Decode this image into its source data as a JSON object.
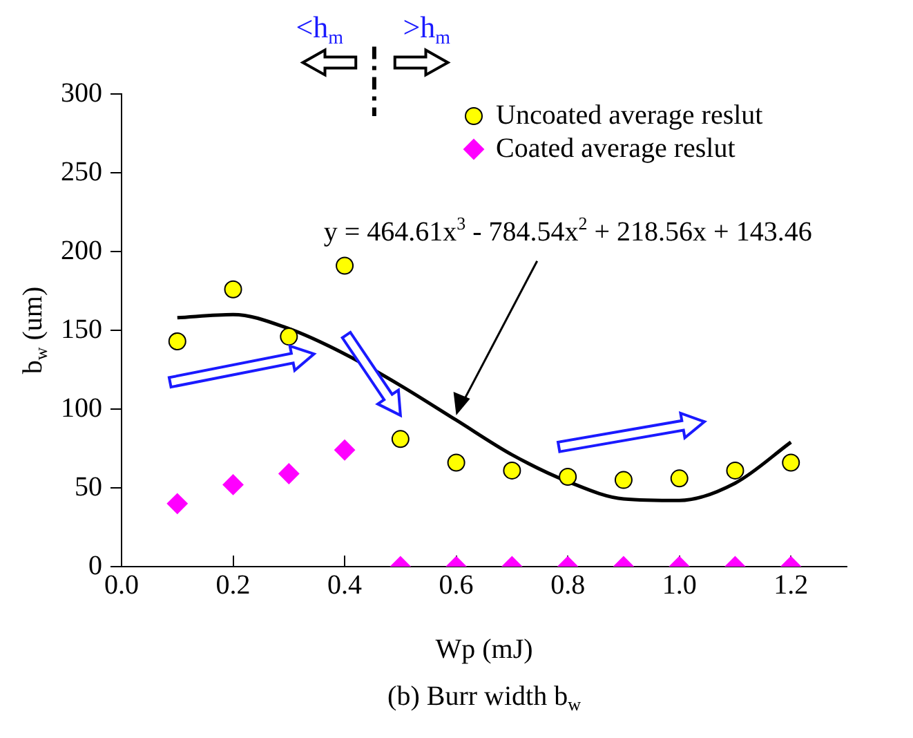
{
  "chart_data": {
    "type": "scatter",
    "title": "(b) Burr width b$_{w}$",
    "xlabel": "Wp (mJ)",
    "ylabel": "b$_{w}$ (um)",
    "x": [
      0.1,
      0.2,
      0.3,
      0.4,
      0.5,
      0.6,
      0.7,
      0.8,
      0.9,
      1.0,
      1.1,
      1.2
    ],
    "series": [
      {
        "name": "Uncoated average reslut",
        "type": "scatter",
        "marker": "circle",
        "color": "#ffff00",
        "values": [
          143,
          176,
          146,
          191,
          81,
          66,
          61,
          57,
          55,
          56,
          61,
          66
        ]
      },
      {
        "name": "Coated average reslut",
        "type": "scatter",
        "marker": "diamond",
        "color": "#ff00ff",
        "values": [
          40,
          52,
          59,
          74,
          0,
          0,
          0,
          0,
          0,
          0,
          0,
          0
        ]
      },
      {
        "type": "line",
        "marker": "none",
        "color": "#000000",
        "values": [
          158,
          160,
          151,
          135,
          115,
          93,
          71,
          54,
          43,
          42,
          53,
          79
        ]
      }
    ],
    "xlim": [
      0,
      1.3
    ],
    "xticks": [
      {
        "value": 0,
        "label": "0.0"
      },
      0.2,
      0.4,
      0.6,
      0.8,
      {
        "value": 1,
        "label": "1.0"
      },
      1.2
    ],
    "ylim": [
      0,
      300
    ],
    "yticks": [
      0,
      50,
      100,
      150,
      200,
      250,
      300
    ],
    "grid": false,
    "legend": "top right",
    "annotations": [
      "<h$_{m}$",
      ">h$_{m}$",
      "y = 464.61x$^{3}$ - 784.54x$^{2}$ + 218.56x + 143.46"
    ]
  }
}
